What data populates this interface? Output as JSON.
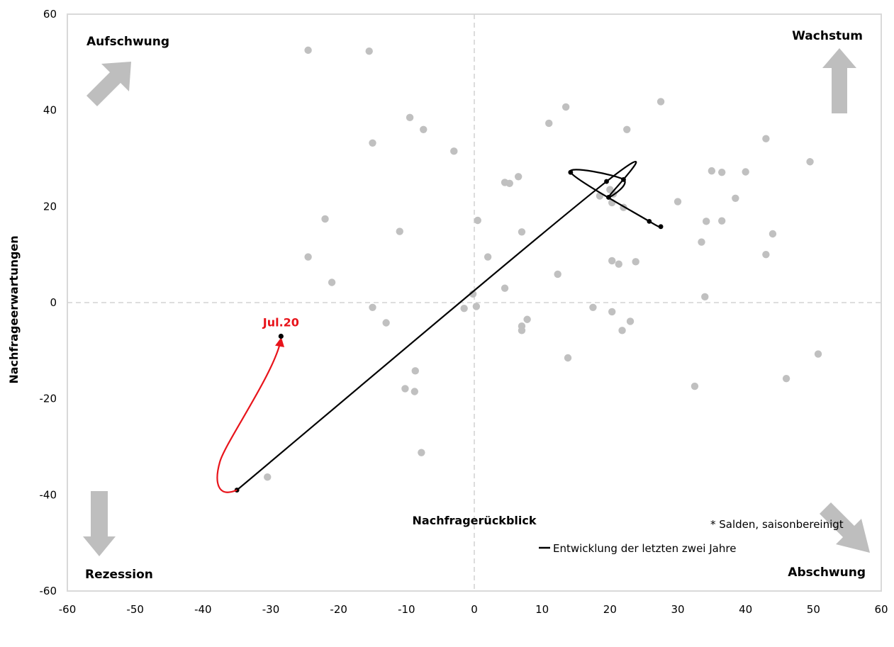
{
  "chart_data": {
    "type": "scatter",
    "xlabel": "Nachfragerückblick",
    "ylabel": "Nachfrageerwartungen",
    "xlim": [
      -60,
      60
    ],
    "ylim": [
      -60,
      60
    ],
    "x_ticks": [
      "-60",
      "-50",
      "-40",
      "-30",
      "-20",
      "-10",
      "0",
      "10",
      "20",
      "30",
      "40",
      "50",
      "60"
    ],
    "y_ticks": [
      "-60",
      "-40",
      "-20",
      "0",
      "20",
      "40",
      "60"
    ],
    "grid": false,
    "reference_lines": {
      "x": 0,
      "y": 0,
      "style": "dashed"
    },
    "quadrant_labels": {
      "top_left": "Aufschwung",
      "top_right": "Wachstum",
      "bottom_left": "Rezession",
      "bottom_right": "Abschwung"
    },
    "legend": {
      "label": "Entwicklung der letzten zwei Jahre",
      "placement": "bottom-right"
    },
    "note": "* Salden, saisonbereinigt",
    "latest_label": "Jul.20",
    "colors": {
      "history": "#c0c0c0",
      "path": "#000000",
      "latest": "#e8141b",
      "arrows": "#bebebe",
      "reference": "#d4d4d4"
    },
    "history_points": [
      [
        -24.5,
        52.5
      ],
      [
        -15.5,
        52.3
      ],
      [
        -9.5,
        38.5
      ],
      [
        -7.5,
        36
      ],
      [
        -15,
        33.2
      ],
      [
        -3,
        31.5
      ],
      [
        13.5,
        40.7
      ],
      [
        11,
        37.3
      ],
      [
        22.5,
        36
      ],
      [
        27.5,
        41.8
      ],
      [
        43,
        34.1
      ],
      [
        49.5,
        29.3
      ],
      [
        6.5,
        26.2
      ],
      [
        4.5,
        25
      ],
      [
        5.2,
        24.8
      ],
      [
        35,
        27.4
      ],
      [
        36.5,
        27.1
      ],
      [
        40,
        27.2
      ],
      [
        18.5,
        22.2
      ],
      [
        20,
        23.5
      ],
      [
        20.5,
        22.6
      ],
      [
        20.3,
        20.8
      ],
      [
        22,
        19.8
      ],
      [
        30,
        21
      ],
      [
        38.5,
        21.7
      ],
      [
        34.2,
        16.9
      ],
      [
        36.5,
        17
      ],
      [
        44,
        14.3
      ],
      [
        -22,
        17.4
      ],
      [
        -11,
        14.8
      ],
      [
        0.5,
        17.1
      ],
      [
        7,
        14.7
      ],
      [
        2,
        9.5
      ],
      [
        33.5,
        12.6
      ],
      [
        43,
        10
      ],
      [
        -24.5,
        9.5
      ],
      [
        -21,
        4.2
      ],
      [
        20.3,
        8.7
      ],
      [
        21.3,
        8
      ],
      [
        23.8,
        8.5
      ],
      [
        12.3,
        5.9
      ],
      [
        4.5,
        3
      ],
      [
        -0.2,
        1.8
      ],
      [
        34,
        1.2
      ],
      [
        -15,
        -1
      ],
      [
        0.3,
        -0.8
      ],
      [
        -1.5,
        -1.2
      ],
      [
        17.5,
        -1
      ],
      [
        20.3,
        -1.9
      ],
      [
        -13,
        -4.2
      ],
      [
        7.8,
        -3.5
      ],
      [
        7,
        -4.9
      ],
      [
        7,
        -5.8
      ],
      [
        23,
        -3.9
      ],
      [
        21.8,
        -5.8
      ],
      [
        50.7,
        -10.7
      ],
      [
        13.8,
        -11.5
      ],
      [
        -8.7,
        -14.2
      ],
      [
        -10.2,
        -17.9
      ],
      [
        -8.8,
        -18.5
      ],
      [
        32.5,
        -17.4
      ],
      [
        46,
        -15.8
      ],
      [
        -7.8,
        -31.2
      ],
      [
        -30.5,
        -36.3
      ]
    ],
    "path_points": [
      [
        -35,
        -39
      ],
      [
        19.5,
        25.2
      ],
      [
        19.8,
        21.9
      ],
      [
        22,
        25.6
      ],
      [
        14.2,
        27.1
      ],
      [
        25.8,
        16.9
      ],
      [
        27.5,
        15.8
      ]
    ],
    "latest_point": [
      -28.5,
      -7
    ]
  }
}
